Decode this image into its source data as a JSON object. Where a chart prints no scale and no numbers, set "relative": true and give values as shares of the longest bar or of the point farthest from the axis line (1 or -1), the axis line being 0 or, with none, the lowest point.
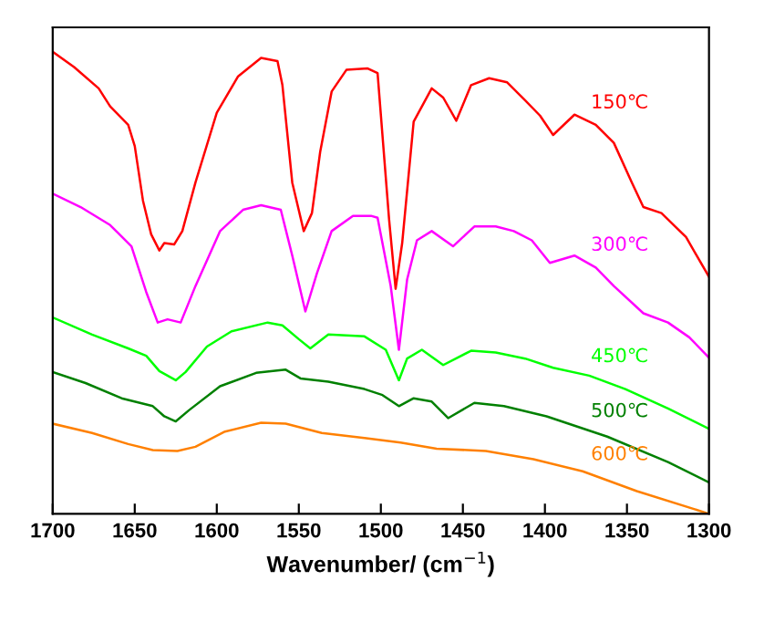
{
  "chart_data": {
    "type": "line",
    "relative": true,
    "xlabel": "Wavenumber/ (cm$^{−1}$)",
    "xlim": [
      1700,
      1300
    ],
    "xticks": [
      1700,
      1650,
      1600,
      1550,
      1500,
      1450,
      1400,
      1350,
      1300
    ],
    "grid": false,
    "legend": false,
    "marker": "none",
    "line_style": "solid",
    "series": [
      {
        "name": "150℃",
        "color": "#ff0000",
        "x": [
          1700,
          1687,
          1672,
          1665,
          1654,
          1650,
          1645,
          1640,
          1635,
          1632,
          1626,
          1621,
          1613,
          1600,
          1587,
          1573,
          1563,
          1560,
          1554,
          1547,
          1542,
          1537,
          1530,
          1521,
          1508,
          1502,
          1495,
          1491,
          1487,
          1480,
          1469,
          1462,
          1454,
          1445,
          1434,
          1423,
          1412,
          1403,
          1395,
          1382,
          1369,
          1358,
          1347,
          1340,
          1329,
          1314,
          1300
        ],
        "values": [
          1.0,
          0.967,
          0.921,
          0.882,
          0.842,
          0.796,
          0.678,
          0.605,
          0.57,
          0.586,
          0.583,
          0.612,
          0.717,
          0.868,
          0.947,
          0.987,
          0.98,
          0.928,
          0.717,
          0.612,
          0.651,
          0.783,
          0.914,
          0.961,
          0.964,
          0.954,
          0.638,
          0.487,
          0.586,
          0.849,
          0.921,
          0.901,
          0.851,
          0.928,
          0.943,
          0.934,
          0.895,
          0.862,
          0.82,
          0.864,
          0.842,
          0.803,
          0.717,
          0.664,
          0.651,
          0.599,
          0.513
        ]
      },
      {
        "name": "300℃",
        "color": "#ff00ff",
        "x": [
          1700,
          1683,
          1665,
          1652,
          1643,
          1636,
          1630,
          1622,
          1613,
          1598,
          1584,
          1573,
          1561,
          1554,
          1546,
          1539,
          1530,
          1517,
          1506,
          1502,
          1494,
          1489,
          1484,
          1478,
          1469,
          1456,
          1443,
          1430,
          1419,
          1408,
          1397,
          1382,
          1369,
          1358,
          1340,
          1325,
          1312,
          1300
        ],
        "values": [
          0.693,
          0.664,
          0.625,
          0.579,
          0.48,
          0.414,
          0.421,
          0.414,
          0.493,
          0.612,
          0.658,
          0.668,
          0.658,
          0.559,
          0.438,
          0.52,
          0.612,
          0.645,
          0.645,
          0.641,
          0.493,
          0.355,
          0.507,
          0.592,
          0.612,
          0.579,
          0.622,
          0.622,
          0.612,
          0.592,
          0.543,
          0.559,
          0.533,
          0.493,
          0.434,
          0.414,
          0.382,
          0.338
        ]
      },
      {
        "name": "450℃",
        "color": "#00ff00",
        "x": [
          1700,
          1676,
          1654,
          1643,
          1635,
          1625,
          1619,
          1606,
          1591,
          1569,
          1560,
          1550,
          1543,
          1532,
          1510,
          1497,
          1489,
          1484,
          1475,
          1462,
          1445,
          1430,
          1412,
          1395,
          1373,
          1351,
          1325,
          1300
        ],
        "values": [
          0.425,
          0.388,
          0.358,
          0.342,
          0.309,
          0.289,
          0.307,
          0.362,
          0.395,
          0.414,
          0.408,
          0.378,
          0.358,
          0.388,
          0.384,
          0.355,
          0.289,
          0.336,
          0.355,
          0.322,
          0.353,
          0.349,
          0.336,
          0.316,
          0.299,
          0.27,
          0.228,
          0.184
        ]
      },
      {
        "name": "500℃",
        "color": "#008000",
        "x": [
          1700,
          1680,
          1658,
          1639,
          1632,
          1625,
          1617,
          1598,
          1576,
          1558,
          1549,
          1532,
          1510,
          1499,
          1489,
          1480,
          1469,
          1459,
          1443,
          1425,
          1399,
          1362,
          1325,
          1300
        ],
        "values": [
          0.307,
          0.283,
          0.25,
          0.233,
          0.211,
          0.2,
          0.224,
          0.276,
          0.305,
          0.312,
          0.293,
          0.286,
          0.27,
          0.257,
          0.233,
          0.25,
          0.243,
          0.207,
          0.24,
          0.233,
          0.211,
          0.167,
          0.112,
          0.068
        ]
      },
      {
        "name": "600℃",
        "color": "#ff8000",
        "x": [
          1700,
          1676,
          1654,
          1639,
          1624,
          1613,
          1595,
          1573,
          1558,
          1536,
          1510,
          1488,
          1466,
          1436,
          1407,
          1377,
          1344,
          1300
        ],
        "values": [
          0.195,
          0.175,
          0.151,
          0.138,
          0.136,
          0.145,
          0.178,
          0.197,
          0.195,
          0.175,
          0.164,
          0.154,
          0.141,
          0.136,
          0.118,
          0.092,
          0.049,
          0.0
        ]
      }
    ]
  }
}
